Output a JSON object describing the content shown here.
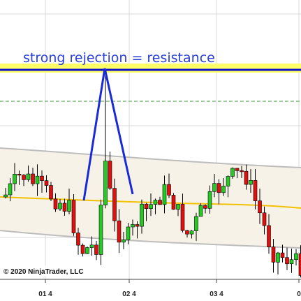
{
  "annotation": "strong rejection = resistance",
  "copyright": "© 2020 NinjaTrader, LLC",
  "x_labels": [
    "01 4",
    "02 4",
    "03 4",
    "0"
  ]
}
